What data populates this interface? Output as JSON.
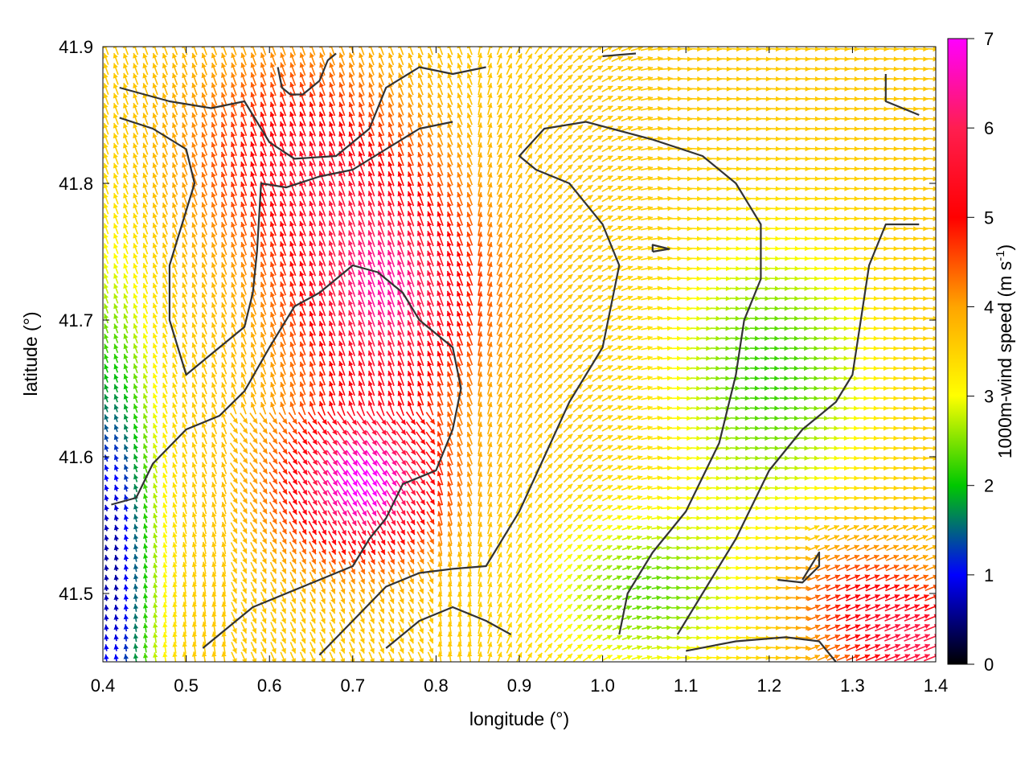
{
  "chart_data": {
    "type": "vector-field",
    "xlabel": "longitude (°)",
    "ylabel": "latitude (°)",
    "xlim": [
      0.4,
      1.4
    ],
    "ylim": [
      41.45,
      41.9
    ],
    "x_ticks": [
      "0.4",
      "0.5",
      "0.6",
      "0.7",
      "0.8",
      "0.9",
      "1.0",
      "1.1",
      "1.2",
      "1.3",
      "1.4"
    ],
    "y_ticks": [
      "41.5",
      "41.6",
      "41.7",
      "41.8",
      "41.9"
    ],
    "colorbar": {
      "label": "1000m-wind speed (m s",
      "label_sup": "-1",
      "label_close": ")",
      "range": [
        0,
        7
      ],
      "ticks": [
        "0",
        "1",
        "2",
        "3",
        "4",
        "5",
        "6",
        "7"
      ],
      "colors": [
        "#000000",
        "#0000ff",
        "#00c800",
        "#ffff00",
        "#ffa500",
        "#ff0000",
        "#ff00ff"
      ]
    },
    "wind_features": {
      "max_center": {
        "lon": 0.71,
        "lat": 41.58,
        "speed": 7.0
      },
      "secondary_max": {
        "lon": 0.74,
        "lat": 41.72,
        "speed": 6.6
      },
      "calm_area": {
        "lon": 0.41,
        "lat": 41.52,
        "speed": 0.8
      },
      "east_band": {
        "lon": 1.2,
        "lat": 41.66,
        "speed": 2.3
      },
      "southeast_jet": {
        "lon": 1.38,
        "lat": 41.46,
        "speed": 5.6
      }
    },
    "contours": [
      [
        [
          0.42,
          41.87
        ],
        [
          0.48,
          41.86
        ],
        [
          0.53,
          41.855
        ],
        [
          0.57,
          41.86
        ],
        [
          0.6,
          41.83
        ],
        [
          0.63,
          41.818
        ],
        [
          0.68,
          41.82
        ],
        [
          0.72,
          41.84
        ],
        [
          0.74,
          41.87
        ],
        [
          0.78,
          41.885
        ],
        [
          0.82,
          41.88
        ],
        [
          0.86,
          41.885
        ]
      ],
      [
        [
          0.42,
          41.848
        ],
        [
          0.46,
          41.84
        ],
        [
          0.5,
          41.825
        ],
        [
          0.51,
          41.8
        ],
        [
          0.5,
          41.78
        ],
        [
          0.49,
          41.76
        ],
        [
          0.48,
          41.74
        ],
        [
          0.48,
          41.7
        ],
        [
          0.5,
          41.66
        ],
        [
          0.54,
          41.68
        ],
        [
          0.57,
          41.695
        ],
        [
          0.58,
          41.72
        ],
        [
          0.585,
          41.75
        ],
        [
          0.59,
          41.8
        ],
        [
          0.62,
          41.797
        ],
        [
          0.66,
          41.805
        ],
        [
          0.7,
          41.81
        ],
        [
          0.74,
          41.825
        ],
        [
          0.78,
          41.84
        ],
        [
          0.82,
          41.845
        ]
      ],
      [
        [
          0.61,
          41.885
        ],
        [
          0.615,
          41.87
        ],
        [
          0.625,
          41.865
        ],
        [
          0.64,
          41.865
        ],
        [
          0.66,
          41.875
        ],
        [
          0.67,
          41.89
        ],
        [
          0.68,
          41.895
        ]
      ],
      [
        [
          0.41,
          41.565
        ],
        [
          0.44,
          41.57
        ],
        [
          0.46,
          41.595
        ],
        [
          0.5,
          41.62
        ],
        [
          0.54,
          41.63
        ],
        [
          0.57,
          41.648
        ],
        [
          0.6,
          41.68
        ],
        [
          0.63,
          41.71
        ],
        [
          0.66,
          41.72
        ],
        [
          0.7,
          41.74
        ],
        [
          0.73,
          41.735
        ],
        [
          0.76,
          41.72
        ],
        [
          0.78,
          41.7
        ],
        [
          0.82,
          41.68
        ],
        [
          0.83,
          41.65
        ],
        [
          0.82,
          41.62
        ],
        [
          0.8,
          41.59
        ],
        [
          0.76,
          41.58
        ],
        [
          0.74,
          41.555
        ],
        [
          0.72,
          41.54
        ],
        [
          0.7,
          41.52
        ],
        [
          0.66,
          41.51
        ],
        [
          0.62,
          41.5
        ],
        [
          0.58,
          41.49
        ],
        [
          0.54,
          41.47
        ],
        [
          0.52,
          41.46
        ]
      ],
      [
        [
          0.66,
          41.455
        ],
        [
          0.7,
          41.48
        ],
        [
          0.74,
          41.505
        ],
        [
          0.78,
          41.515
        ],
        [
          0.82,
          41.518
        ],
        [
          0.86,
          41.52
        ],
        [
          0.9,
          41.56
        ],
        [
          0.93,
          41.6
        ],
        [
          0.96,
          41.64
        ],
        [
          1.0,
          41.68
        ],
        [
          1.02,
          41.74
        ],
        [
          1.0,
          41.77
        ],
        [
          0.96,
          41.8
        ],
        [
          0.92,
          41.81
        ],
        [
          0.9,
          41.82
        ],
        [
          0.93,
          41.84
        ],
        [
          0.98,
          41.845
        ],
        [
          1.06,
          41.832
        ],
        [
          1.12,
          41.82
        ],
        [
          1.16,
          41.8
        ],
        [
          1.19,
          41.77
        ],
        [
          1.19,
          41.73
        ],
        [
          1.17,
          41.7
        ],
        [
          1.16,
          41.66
        ],
        [
          1.14,
          41.61
        ],
        [
          1.1,
          41.56
        ],
        [
          1.06,
          41.53
        ],
        [
          1.03,
          41.5
        ],
        [
          1.02,
          41.47
        ]
      ],
      [
        [
          0.74,
          41.46
        ],
        [
          0.78,
          41.48
        ],
        [
          0.82,
          41.49
        ],
        [
          0.86,
          41.48
        ],
        [
          0.89,
          41.47
        ]
      ],
      [
        [
          1.06,
          41.75
        ],
        [
          1.08,
          41.752
        ],
        [
          1.06,
          41.755
        ],
        [
          1.06,
          41.75
        ]
      ],
      [
        [
          1.1,
          41.458
        ],
        [
          1.16,
          41.465
        ],
        [
          1.22,
          41.468
        ],
        [
          1.26,
          41.465
        ],
        [
          1.28,
          41.45
        ]
      ],
      [
        [
          1.21,
          41.51
        ],
        [
          1.24,
          41.508
        ],
        [
          1.26,
          41.52
        ],
        [
          1.26,
          41.53
        ],
        [
          1.24,
          41.51
        ]
      ],
      [
        [
          1.34,
          41.88
        ],
        [
          1.34,
          41.86
        ],
        [
          1.38,
          41.85
        ]
      ],
      [
        [
          1.0,
          41.893
        ],
        [
          1.04,
          41.895
        ]
      ],
      [
        [
          1.38,
          41.77
        ],
        [
          1.34,
          41.77
        ],
        [
          1.32,
          41.74
        ],
        [
          1.31,
          41.7
        ],
        [
          1.3,
          41.66
        ],
        [
          1.28,
          41.64
        ],
        [
          1.24,
          41.62
        ],
        [
          1.2,
          41.59
        ],
        [
          1.16,
          41.54
        ],
        [
          1.12,
          41.5
        ],
        [
          1.09,
          41.47
        ]
      ]
    ]
  }
}
